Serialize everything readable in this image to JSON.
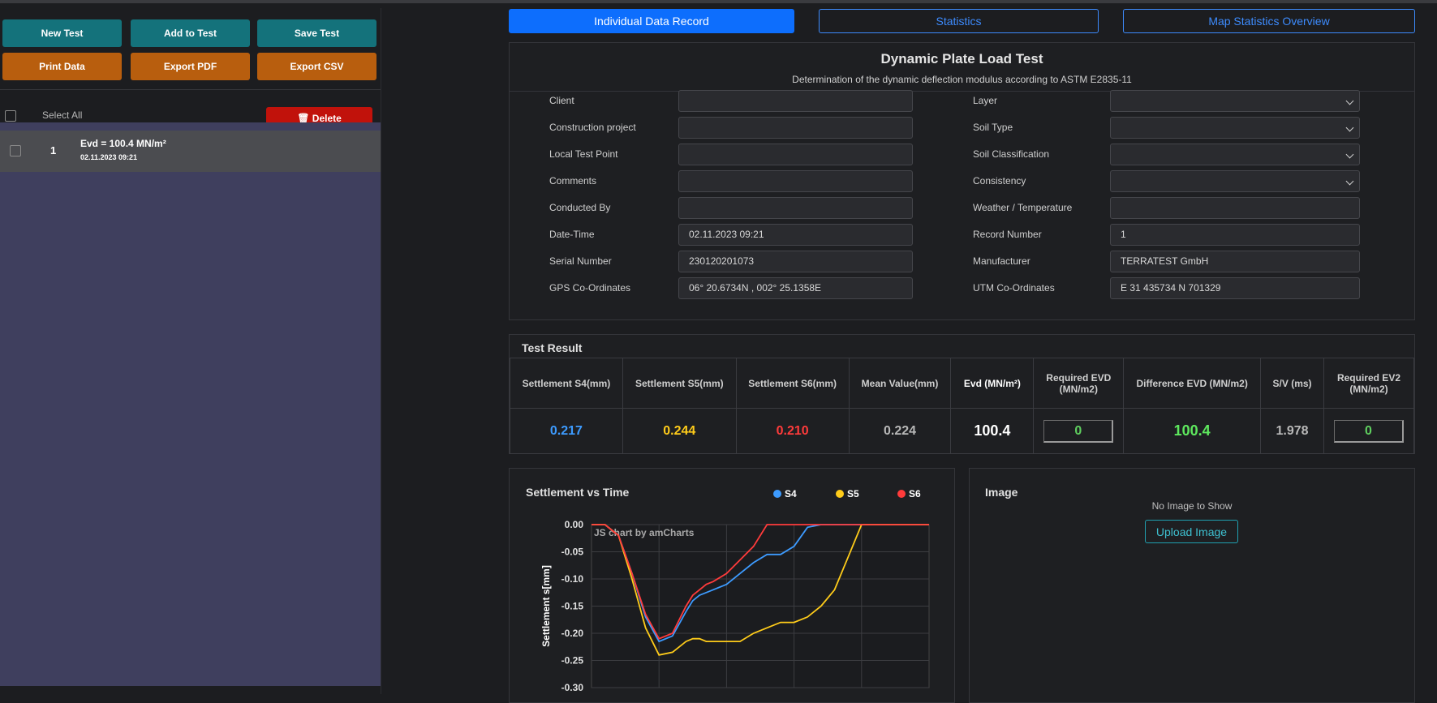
{
  "toolbar": {
    "new_test": "New Test",
    "add_to_test": "Add to Test",
    "save_test": "Save Test",
    "print_data": "Print Data",
    "export_pdf": "Export PDF",
    "export_csv": "Export CSV"
  },
  "list": {
    "select_all": "Select All",
    "delete_label": "🗑 Delete",
    "items": [
      {
        "num": "1",
        "title": "Evd = 100.4 MN/m²",
        "date": "02.11.2023 09:21"
      }
    ]
  },
  "tabs": [
    {
      "label": "Individual Data Record",
      "active": true
    },
    {
      "label": "Statistics",
      "active": false
    },
    {
      "label": "Map Statistics Overview",
      "active": false
    }
  ],
  "record": {
    "title": "Dynamic Plate Load Test",
    "subtitle": "Determination of the dynamic deflection modulus according to ASTM E2835-11",
    "left_fields": [
      {
        "label": "Client",
        "value": ""
      },
      {
        "label": "Construction project",
        "value": ""
      },
      {
        "label": "Local Test Point",
        "value": ""
      },
      {
        "label": "Comments",
        "value": ""
      },
      {
        "label": "Conducted By",
        "value": ""
      },
      {
        "label": "Date-Time",
        "value": "02.11.2023 09:21"
      },
      {
        "label": "Serial Number",
        "value": "230120201073"
      },
      {
        "label": "GPS Co-Ordinates",
        "value": "06° 20.6734N , 002° 25.1358E"
      }
    ],
    "right_fields": [
      {
        "label": "Layer",
        "value": "",
        "select": true
      },
      {
        "label": "Soil Type",
        "value": "",
        "select": true
      },
      {
        "label": "Soil Classification",
        "value": "",
        "select": true
      },
      {
        "label": "Consistency",
        "value": "",
        "select": true
      },
      {
        "label": "Weather / Temperature",
        "value": "",
        "select": false
      },
      {
        "label": "Record Number",
        "value": "1",
        "select": false
      },
      {
        "label": "Manufacturer",
        "value": "TERRATEST GmbH",
        "select": false
      },
      {
        "label": "UTM Co-Ordinates",
        "value": "E 31 435734 N 701329",
        "select": false
      }
    ]
  },
  "result": {
    "heading": "Test Result",
    "headers": [
      "Settlement S4(mm)",
      "Settlement S5(mm)",
      "Settlement S6(mm)",
      "Mean Value(mm)",
      "Evd (MN/m²)",
      "Required EVD (MN/m2)",
      "Difference EVD (MN/m2)",
      "S/V (ms)",
      "Required EV2 (MN/m2)"
    ],
    "s4": "0.217",
    "s5": "0.244",
    "s6": "0.210",
    "mean": "0.224",
    "evd": "100.4",
    "required_evd": "0",
    "difference_evd": "100.4",
    "sv": "1.978",
    "required_ev2": "0",
    "colors": {
      "s4": "#3d9bff",
      "s5": "#ffcc1a",
      "s6": "#ff3b3b",
      "diff": "#5ee85e",
      "req": "#5fcf5f"
    }
  },
  "chart": {
    "title": "Settlement vs Time",
    "watermark": "JS chart by amCharts",
    "chart_data": {
      "type": "line",
      "ylabel": "Settlement s[mm]",
      "xlabel": "",
      "ylim": [
        -0.3,
        0.0
      ],
      "yticks": [
        "0.00",
        "-0.05",
        "-0.10",
        "-0.15",
        "-0.20",
        "-0.25",
        "-0.30"
      ],
      "legend_position": "top-right",
      "x": [
        0,
        4,
        8,
        12,
        16,
        20,
        24,
        28,
        30,
        32,
        34,
        36,
        40,
        44,
        48,
        52,
        56,
        60,
        64,
        68,
        72,
        76,
        80,
        84,
        88,
        92,
        96,
        100
      ],
      "series": [
        {
          "name": "S4",
          "color": "#3d9bff",
          "values": [
            0.0,
            0.0,
            -0.02,
            -0.09,
            -0.17,
            -0.215,
            -0.205,
            -0.16,
            -0.14,
            -0.13,
            -0.125,
            -0.12,
            -0.11,
            -0.09,
            -0.07,
            -0.055,
            -0.055,
            -0.04,
            -0.005,
            0.0,
            0.0,
            0.0,
            0.0,
            0.0,
            0.0,
            0.0,
            0.0,
            0.0
          ]
        },
        {
          "name": "S5",
          "color": "#ffcc1a",
          "values": [
            0.0,
            0.0,
            -0.02,
            -0.1,
            -0.19,
            -0.24,
            -0.235,
            -0.215,
            -0.21,
            -0.21,
            -0.215,
            -0.215,
            -0.215,
            -0.215,
            -0.2,
            -0.19,
            -0.18,
            -0.18,
            -0.17,
            -0.15,
            -0.12,
            -0.06,
            0.0,
            0.0,
            0.0,
            0.0,
            0.0,
            0.0
          ]
        },
        {
          "name": "S6",
          "color": "#ff3b3b",
          "values": [
            0.0,
            0.0,
            -0.02,
            -0.09,
            -0.165,
            -0.21,
            -0.2,
            -0.15,
            -0.13,
            -0.12,
            -0.11,
            -0.105,
            -0.09,
            -0.065,
            -0.04,
            -0.0,
            0.0,
            0.0,
            0.0,
            0.0,
            0.0,
            0.0,
            0.0,
            0.0,
            0.0,
            0.0,
            0.0,
            0.0
          ]
        }
      ]
    }
  },
  "image": {
    "heading": "Image",
    "empty_text": "No Image to Show",
    "upload_label": "Upload Image"
  }
}
